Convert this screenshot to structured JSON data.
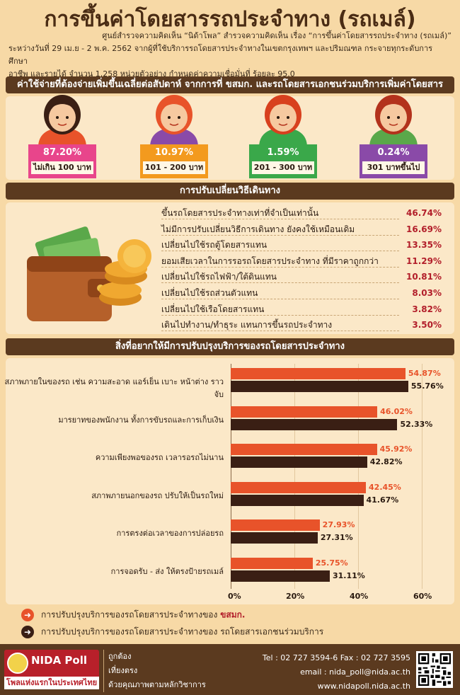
{
  "title": "การขึ้นค่าโดยสารรถประจำทาง (รถเมล์)",
  "intro": {
    "line1": "ศูนย์สำรวจความคิดเห็น “นิด้าโพล” สำรวจความคิดเห็น เรื่อง “การขึ้นค่าโดยสารรถประจำทาง (รถเมล์)”",
    "line2": "ระหว่างวันที่ 29 เม.ย - 2 พ.ค. 2562 จากผู้ที่ใช้บริการรถโดยสารประจำทางในเขตกรุงเทพฯ และปริมณฑล กระจายทุกระดับการศึกษา",
    "line3": "อาชีพ และรายได้ จำนวน 1,258 หน่วยตัวอย่าง กำหนดค่าความเชื่อมั่นที่ ร้อยละ 95.0"
  },
  "section1": {
    "heading": "ค่าใช้จ่ายที่ต้องจ่ายเพิ่มขึ้นเฉลี่ยต่อสัปดาห์ จากการที่ ขสมก. และรถโดยสารเอกชนร่วมบริการเพิ่มค่าโดยสาร",
    "items": [
      {
        "pct": "87.20%",
        "range": "ไม่เกิน 100 บาท",
        "color": "#e8458b"
      },
      {
        "pct": "10.97%",
        "range": "101 - 200 บาท",
        "color": "#f39a1e"
      },
      {
        "pct": "1.59%",
        "range": "201 - 300 บาท",
        "color": "#3aa84a"
      },
      {
        "pct": "0.24%",
        "range": "301 บาทขึ้นไป",
        "color": "#8a4aa8"
      }
    ]
  },
  "section2": {
    "heading": "การปรับเปลี่ยนวิธีเดินทาง",
    "rows": [
      {
        "label": "ขึ้นรถโดยสารประจำทางเท่าที่จำเป็นเท่านั้น",
        "value": "46.74%"
      },
      {
        "label": "ไม่มีการปรับเปลี่ยนวิธีการเดินทาง ยังคงใช้เหมือนเดิม",
        "value": "16.69%"
      },
      {
        "label": "เปลี่ยนไปใช้รถตู้โดยสารแทน",
        "value": "13.35%"
      },
      {
        "label": "ยอมเสียเวลาในการรอรถโดยสารประจำทาง ที่มีราคาถูกกว่า",
        "value": "11.29%"
      },
      {
        "label": "เปลี่ยนไปใช้รถไฟฟ้า/ใต้ดินแทน",
        "value": "10.81%"
      },
      {
        "label": "เปลี่ยนไปใช้รถส่วนตัวแทน",
        "value": "8.03%"
      },
      {
        "label": "เปลี่ยนไปใช้เรือโดยสารแทน",
        "value": "3.82%"
      },
      {
        "label": "เดินไปทำงาน/ทำธุระ แทนการขึ้นรถประจำทาง",
        "value": "3.50%"
      }
    ]
  },
  "section3": {
    "heading": "สิ่งที่อยากให้มีการปรับปรุงบริการของรถโดยสารประจำทาง"
  },
  "chart_data": {
    "type": "bar",
    "orientation": "horizontal",
    "categories": [
      "สภาพภายในของรถ เช่น ความสะอาด แอร์เย็น เบาะ หน้าต่าง ราวจับ",
      "มารยาทของพนักงาน ทั้งการขับรถและการเก็บเงิน",
      "ความเพียงพอของรถ เวลารอรถไม่นาน",
      "สภาพภายนอกของรถ ปรับให้เป็นรถใหม่",
      "การตรงต่อเวลาของการปล่อยรถ",
      "การจอดรับ - ส่ง ให้ตรงป้ายรถเมล์"
    ],
    "series": [
      {
        "name": "การปรับปรุงบริการของรถโดยสารประจำทางของ ขสมก.",
        "values": [
          54.87,
          46.02,
          45.92,
          42.45,
          27.93,
          25.75
        ],
        "color": "#e8532a"
      },
      {
        "name": "การปรับปรุงบริการของรถโดยสารประจำทางของ รถโดยสารเอกชนร่วมบริการ",
        "values": [
          55.76,
          52.33,
          42.82,
          41.67,
          27.31,
          31.11
        ],
        "color": "#3a1f14"
      }
    ],
    "value_labels": [
      [
        "54.87%",
        "46.02%",
        "45.92%",
        "42.45%",
        "27.93%",
        "25.75%"
      ],
      [
        "55.76%",
        "52.33%",
        "42.82%",
        "41.67%",
        "27.31%",
        "31.11%"
      ]
    ],
    "xlim": [
      0,
      60
    ],
    "xticks": [
      "0%",
      "20%",
      "40%",
      "60%"
    ],
    "legend_placement": "bottom"
  },
  "legend": {
    "item1_prefix": "การปรับปรุงบริการของรถโดยสารประจำทางของ",
    "item1_org": "ขสมก.",
    "item2_prefix": "การปรับปรุงบริการของรถโดยสารประจำทางของ",
    "item2_org": "รถโดยสารเอกชนร่วมบริการ"
  },
  "footer": {
    "logo_name": "NIDA Poll",
    "logo_tag": "โพลแห่งแรกในประเทศไทย",
    "motto": [
      "ถูกต้อง",
      "เที่ยงตรง",
      "ด้วยคุณภาพตามหลักวิชาการ"
    ],
    "tel": "Tel : 02 727 3594-6 Fax : 02 727 3595",
    "email": "email : nida_poll@nida.ac.th",
    "web": "www.nidapoll.nida.ac.th"
  }
}
